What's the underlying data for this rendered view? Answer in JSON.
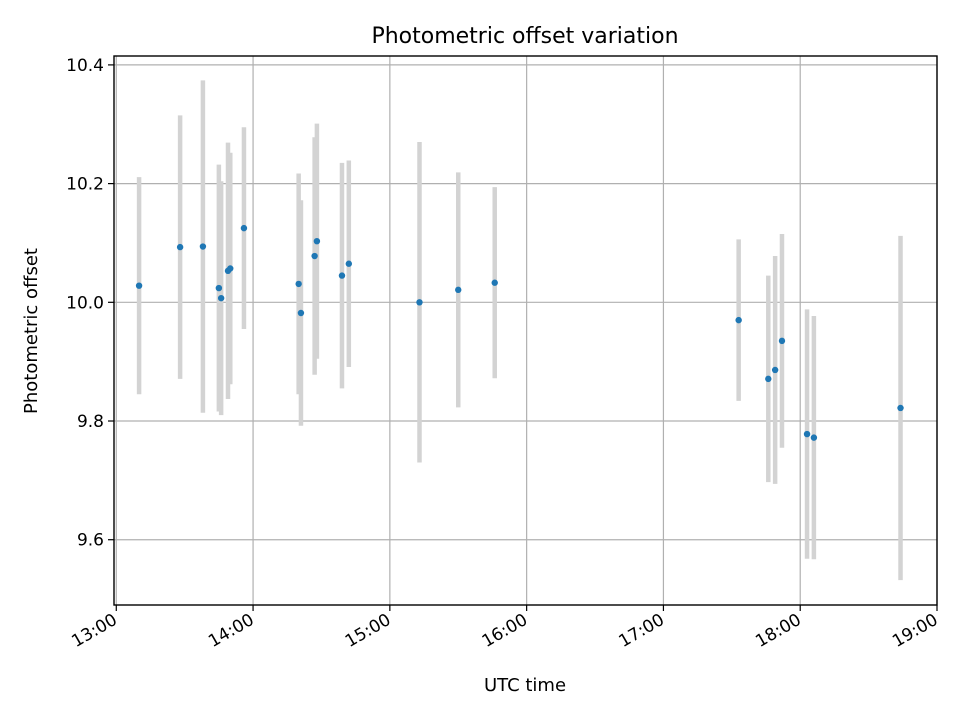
{
  "chart_data": {
    "type": "scatter",
    "title": "Photometric offset variation",
    "xlabel": "UTC time",
    "ylabel": "Photometric offset",
    "x_ticks": [
      "13:00",
      "14:00",
      "15:00",
      "16:00",
      "17:00",
      "18:00",
      "19:00"
    ],
    "y_ticks": [
      "9.6",
      "9.8",
      "10.0",
      "10.2",
      "10.4"
    ],
    "xlim": [
      "12:59",
      "19:00"
    ],
    "ylim": [
      9.49,
      10.415
    ],
    "grid": true,
    "errorbar_color": "#d3d3d3",
    "marker_color": "#1f77b4",
    "points": [
      {
        "x": "13:10",
        "y": 10.028,
        "err": 0.183
      },
      {
        "x": "13:28",
        "y": 10.093,
        "err": 0.222
      },
      {
        "x": "13:38",
        "y": 10.094,
        "err": 0.28
      },
      {
        "x": "13:45",
        "y": 10.024,
        "err": 0.208
      },
      {
        "x": "13:46",
        "y": 10.007,
        "err": 0.197
      },
      {
        "x": "13:49",
        "y": 10.053,
        "err": 0.216
      },
      {
        "x": "13:50",
        "y": 10.057,
        "err": 0.195
      },
      {
        "x": "13:56",
        "y": 10.125,
        "err": 0.17
      },
      {
        "x": "14:20",
        "y": 10.031,
        "err": 0.186
      },
      {
        "x": "14:21",
        "y": 9.982,
        "err": 0.19
      },
      {
        "x": "14:27",
        "y": 10.078,
        "err": 0.2
      },
      {
        "x": "14:28",
        "y": 10.103,
        "err": 0.198
      },
      {
        "x": "14:39",
        "y": 10.045,
        "err": 0.19
      },
      {
        "x": "14:42",
        "y": 10.065,
        "err": 0.174
      },
      {
        "x": "15:13",
        "y": 10.0,
        "err": 0.27
      },
      {
        "x": "15:30",
        "y": 10.021,
        "err": 0.198
      },
      {
        "x": "15:46",
        "y": 10.033,
        "err": 0.161
      },
      {
        "x": "17:33",
        "y": 9.97,
        "err": 0.136
      },
      {
        "x": "17:46",
        "y": 9.871,
        "err": 0.174
      },
      {
        "x": "17:49",
        "y": 9.886,
        "err": 0.192
      },
      {
        "x": "17:52",
        "y": 9.935,
        "err": 0.18
      },
      {
        "x": "18:03",
        "y": 9.778,
        "err": 0.21
      },
      {
        "x": "18:06",
        "y": 9.772,
        "err": 0.205
      },
      {
        "x": "18:44",
        "y": 9.822,
        "err": 0.29
      }
    ]
  }
}
